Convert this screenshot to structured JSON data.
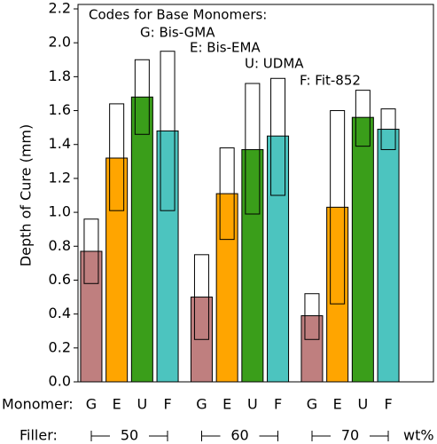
{
  "chart_data": {
    "type": "bar",
    "y_label": "Depth of Cure (mm)",
    "legend_title": "Codes for Base Monomers:",
    "monomer_label": "Monomer:",
    "filler_label": "Filler:",
    "filler_unit": "wt%",
    "categories": [
      "50",
      "60",
      "70"
    ],
    "ylim": [
      0,
      2.2
    ],
    "yticks": [
      {
        "value": 0,
        "label": "0.0"
      },
      0.2,
      0.4,
      0.6,
      0.8,
      {
        "value": 1,
        "label": "1.0"
      },
      1.2,
      1.4,
      1.6,
      1.8,
      {
        "value": 2,
        "label": "2.0"
      },
      2.2
    ],
    "series": [
      {
        "name": "G: Bis-GMA",
        "code": "G",
        "color": "#bf7f7f",
        "values": [
          0.77,
          0.5,
          0.39
        ],
        "range_low": [
          0.58,
          0.25,
          0.25
        ],
        "range_high": [
          0.96,
          0.75,
          0.52
        ]
      },
      {
        "name": "E: Bis-EMA",
        "code": "E",
        "color": "#ffa500",
        "values": [
          1.32,
          1.11,
          1.03
        ],
        "range_low": [
          1.01,
          0.84,
          0.46
        ],
        "range_high": [
          1.64,
          1.38,
          1.6
        ]
      },
      {
        "name": "U: UDMA",
        "code": "U",
        "color": "#3a9e1a",
        "values": [
          1.68,
          1.37,
          1.56
        ],
        "range_low": [
          1.46,
          0.99,
          1.39
        ],
        "range_high": [
          1.9,
          1.76,
          1.72
        ]
      },
      {
        "name": "F: Fit-852",
        "code": "F",
        "color": "#4cc4bf",
        "values": [
          1.48,
          1.45,
          1.49
        ],
        "range_low": [
          1.01,
          1.1,
          1.37
        ],
        "range_high": [
          1.95,
          1.79,
          1.61
        ]
      }
    ]
  }
}
